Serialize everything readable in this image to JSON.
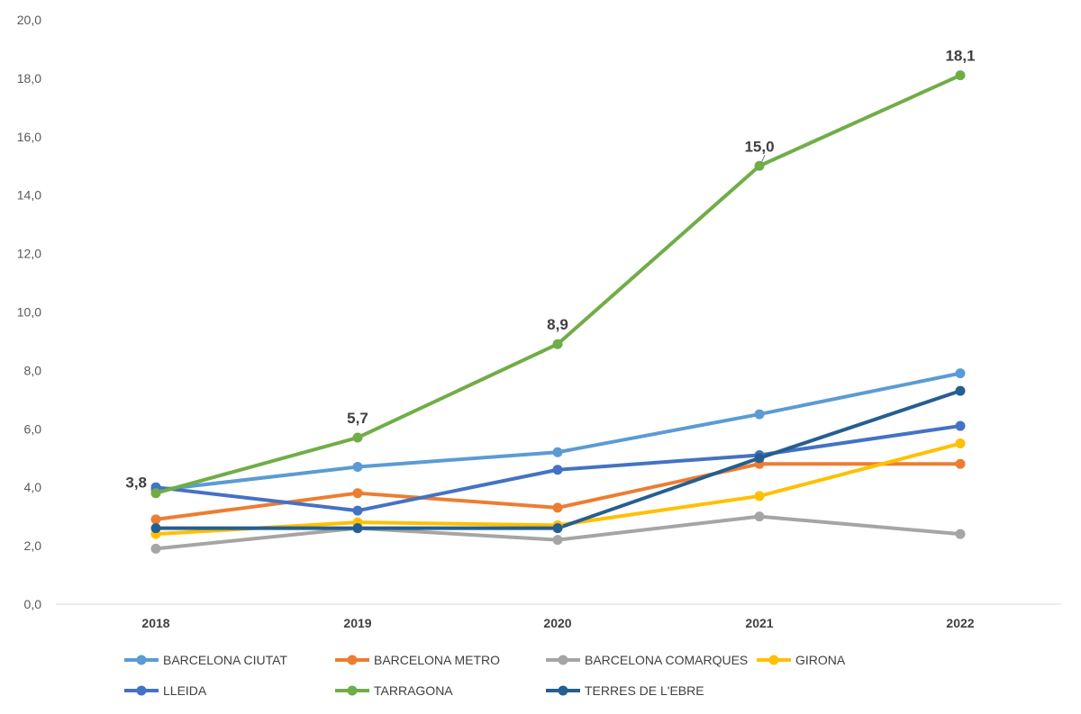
{
  "chart_data": {
    "type": "line",
    "title": "",
    "xlabel": "",
    "ylabel": "",
    "categories": [
      "2018",
      "2019",
      "2020",
      "2021",
      "2022"
    ],
    "ylim": [
      0,
      20
    ],
    "yticks": [
      "0,0",
      "2,0",
      "4,0",
      "6,0",
      "8,0",
      "10,0",
      "12,0",
      "14,0",
      "16,0",
      "18,0",
      "20,0"
    ],
    "grid": false,
    "legend": "bottom",
    "series": [
      {
        "name": "BARCELONA CIUTAT",
        "color": "#5B9BD5",
        "values": [
          3.9,
          4.7,
          5.2,
          6.5,
          7.9
        ]
      },
      {
        "name": "BARCELONA METRO",
        "color": "#ED7D31",
        "values": [
          2.9,
          3.8,
          3.3,
          4.8,
          4.8
        ]
      },
      {
        "name": "BARCELONA COMARQUES",
        "color": "#A5A5A5",
        "values": [
          1.9,
          2.6,
          2.2,
          3.0,
          2.4
        ]
      },
      {
        "name": "GIRONA",
        "color": "#FFC000",
        "values": [
          2.4,
          2.8,
          2.7,
          3.7,
          5.5
        ]
      },
      {
        "name": "LLEIDA",
        "color": "#4472C4",
        "values": [
          4.0,
          3.2,
          4.6,
          5.1,
          6.1
        ]
      },
      {
        "name": "TARRAGONA",
        "color": "#70AD47",
        "values": [
          3.8,
          5.7,
          8.9,
          15.0,
          18.1
        ]
      },
      {
        "name": "TERRES DE L'EBRE",
        "color": "#255E91",
        "values": [
          2.6,
          2.6,
          2.6,
          5.0,
          7.3
        ]
      }
    ],
    "annotations": {
      "series": "TARRAGONA",
      "labels": [
        "3,8",
        "5,7",
        "8,9",
        "15,0",
        "18,1"
      ]
    }
  }
}
